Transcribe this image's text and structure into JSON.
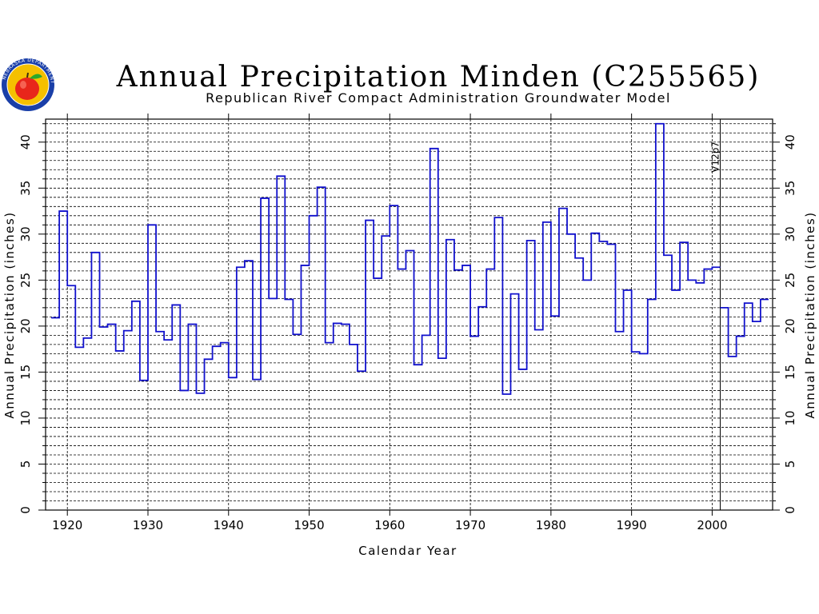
{
  "logo": {
    "icon": "apple-seal-icon",
    "seal_text": "NEBRASKA DEPARTMENT",
    "colors": {
      "ring": "#1a3fa8",
      "fill": "#f5c000",
      "apple": "#e8261b",
      "leaf": "#2aa82a"
    }
  },
  "chart_data": {
    "type": "line",
    "style": "step",
    "title": "Annual Precipitation Minden (C255565)",
    "subtitle": "Republican River Compact Administration Groundwater Model",
    "xlabel": "Calendar Year",
    "ylabel": "Annual Precipitation (inches)",
    "ylabel_right": "Annual Precipitation (inches)",
    "xlim": [
      1917.3,
      2007.5
    ],
    "ylim": [
      0,
      42.5
    ],
    "x_ticks": [
      1920,
      1930,
      1940,
      1950,
      1960,
      1970,
      1980,
      1990,
      2000
    ],
    "y_ticks": [
      0,
      5,
      10,
      15,
      20,
      25,
      30,
      35,
      40
    ],
    "y_grid_step": 1,
    "grid": true,
    "vline": {
      "x": 2001,
      "label": "V12p7"
    },
    "colors": {
      "series": "#1010cc",
      "grid": "#000000",
      "axis": "#000000"
    },
    "series": [
      {
        "years": [
          1918,
          1919,
          1920,
          1921,
          1922,
          1923,
          1924,
          1925,
          1926,
          1927,
          1928,
          1929,
          1930,
          1931,
          1932,
          1933,
          1934,
          1935,
          1936,
          1937,
          1938,
          1939,
          1940,
          1941,
          1942,
          1943,
          1944,
          1945,
          1946,
          1947,
          1948,
          1949,
          1950,
          1951,
          1952,
          1953,
          1954,
          1955,
          1956,
          1957,
          1958,
          1959,
          1960,
          1961,
          1962,
          1963,
          1964,
          1965,
          1966,
          1967,
          1968,
          1969,
          1970,
          1971,
          1972,
          1973,
          1974,
          1975,
          1976,
          1977,
          1978,
          1979,
          1980,
          1981,
          1982,
          1983,
          1984,
          1985,
          1986,
          1987,
          1988,
          1989,
          1990,
          1991,
          1992,
          1993,
          1994,
          1995,
          1996,
          1997,
          1998,
          1999,
          2000
        ],
        "values": [
          20.9,
          32.5,
          24.4,
          17.7,
          18.7,
          28.0,
          19.9,
          20.2,
          17.3,
          19.5,
          22.7,
          14.1,
          31.0,
          19.4,
          18.5,
          22.3,
          13.0,
          20.2,
          12.7,
          16.4,
          17.8,
          18.2,
          14.4,
          26.4,
          27.1,
          14.2,
          33.9,
          23.0,
          36.3,
          22.9,
          19.1,
          26.6,
          32.0,
          35.1,
          18.2,
          20.3,
          20.2,
          18.0,
          15.1,
          31.5,
          25.2,
          29.8,
          33.1,
          26.2,
          28.2,
          15.8,
          19.0,
          39.3,
          16.5,
          29.4,
          26.1,
          26.6,
          18.9,
          22.1,
          26.2,
          31.8,
          12.6,
          23.5,
          15.3,
          29.3,
          19.6,
          31.3,
          21.1,
          32.8,
          30.0,
          27.4,
          25.0,
          30.1,
          29.2,
          28.9,
          19.4,
          23.9,
          17.2,
          17.0,
          22.9,
          42.0,
          27.7,
          23.9,
          29.1,
          25.0,
          24.7,
          26.2,
          26.4
        ]
      },
      {
        "years": [
          2001,
          2002,
          2003,
          2004,
          2005,
          2006
        ],
        "values": [
          22.0,
          16.7,
          18.9,
          22.5,
          20.5,
          22.9
        ]
      }
    ]
  }
}
